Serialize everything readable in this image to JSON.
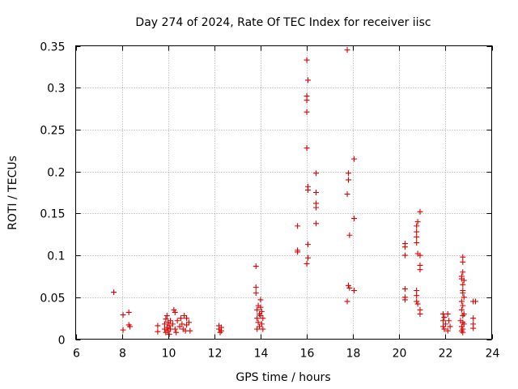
{
  "chart_data": {
    "type": "scatter",
    "title": "Day 274 of 2024, Rate Of TEC Index for receiver iisc",
    "xlabel": "GPS time / hours",
    "ylabel": "ROTI / TECUs",
    "xlim": [
      6,
      24
    ],
    "ylim": [
      0,
      0.35
    ],
    "grid": true,
    "marker": "+",
    "series_color": "#dd0000",
    "x_ticks": [
      6,
      8,
      10,
      12,
      14,
      16,
      18,
      20,
      22,
      24
    ],
    "x_tick_labels": [
      "6",
      "8",
      "10",
      "12",
      "14",
      "16",
      "18",
      "20",
      "22",
      "24"
    ],
    "y_ticks": [
      0,
      0.05,
      0.1,
      0.15,
      0.2,
      0.25,
      0.3,
      0.35
    ],
    "y_tick_labels": [
      "0",
      "0.05",
      "0.1",
      "0.15",
      "0.2",
      "0.25",
      "0.3",
      "0.35"
    ],
    "points": [
      [
        7.65,
        0.056
      ],
      [
        8.05,
        0.029
      ],
      [
        8.05,
        0.011
      ],
      [
        8.3,
        0.032
      ],
      [
        8.3,
        0.017
      ],
      [
        8.35,
        0.015
      ],
      [
        9.55,
        0.016
      ],
      [
        9.55,
        0.009
      ],
      [
        9.85,
        0.012
      ],
      [
        9.85,
        0.018
      ],
      [
        9.9,
        0.024
      ],
      [
        9.9,
        0.008
      ],
      [
        9.95,
        0.014
      ],
      [
        9.95,
        0.028
      ],
      [
        10.0,
        0.01
      ],
      [
        10.0,
        0.02
      ],
      [
        10.05,
        0.016
      ],
      [
        10.05,
        0.006
      ],
      [
        10.1,
        0.012
      ],
      [
        10.1,
        0.022
      ],
      [
        10.2,
        0.018
      ],
      [
        10.25,
        0.035
      ],
      [
        10.3,
        0.032
      ],
      [
        10.3,
        0.012
      ],
      [
        10.35,
        0.008
      ],
      [
        10.4,
        0.022
      ],
      [
        10.5,
        0.015
      ],
      [
        10.55,
        0.025
      ],
      [
        10.6,
        0.018
      ],
      [
        10.65,
        0.012
      ],
      [
        10.7,
        0.028
      ],
      [
        10.75,
        0.01
      ],
      [
        10.8,
        0.025
      ],
      [
        10.8,
        0.017
      ],
      [
        10.9,
        0.02
      ],
      [
        10.95,
        0.01
      ],
      [
        12.2,
        0.016
      ],
      [
        12.2,
        0.012
      ],
      [
        12.25,
        0.008
      ],
      [
        12.3,
        0.014
      ],
      [
        12.3,
        0.01
      ],
      [
        13.8,
        0.087
      ],
      [
        13.8,
        0.062
      ],
      [
        13.8,
        0.055
      ],
      [
        13.85,
        0.035
      ],
      [
        13.85,
        0.025
      ],
      [
        13.85,
        0.012
      ],
      [
        13.9,
        0.04
      ],
      [
        13.9,
        0.02
      ],
      [
        13.95,
        0.03
      ],
      [
        13.95,
        0.015
      ],
      [
        14.0,
        0.047
      ],
      [
        14.0,
        0.038
      ],
      [
        14.0,
        0.028
      ],
      [
        14.05,
        0.033
      ],
      [
        14.05,
        0.018
      ],
      [
        14.1,
        0.025
      ],
      [
        14.1,
        0.012
      ],
      [
        15.6,
        0.135
      ],
      [
        15.6,
        0.106
      ],
      [
        15.6,
        0.104
      ],
      [
        16.0,
        0.333
      ],
      [
        16.05,
        0.309
      ],
      [
        16.0,
        0.29
      ],
      [
        16.0,
        0.285
      ],
      [
        16.0,
        0.271
      ],
      [
        16.0,
        0.228
      ],
      [
        16.05,
        0.182
      ],
      [
        16.05,
        0.178
      ],
      [
        16.05,
        0.113
      ],
      [
        16.05,
        0.097
      ],
      [
        16.0,
        0.09
      ],
      [
        16.4,
        0.198
      ],
      [
        16.4,
        0.175
      ],
      [
        16.4,
        0.162
      ],
      [
        16.4,
        0.157
      ],
      [
        16.4,
        0.138
      ],
      [
        17.75,
        0.345
      ],
      [
        17.8,
        0.198
      ],
      [
        17.8,
        0.19
      ],
      [
        17.75,
        0.173
      ],
      [
        17.85,
        0.124
      ],
      [
        17.8,
        0.064
      ],
      [
        17.85,
        0.061
      ],
      [
        17.75,
        0.045
      ],
      [
        18.05,
        0.215
      ],
      [
        18.05,
        0.144
      ],
      [
        18.05,
        0.058
      ],
      [
        20.25,
        0.114
      ],
      [
        20.25,
        0.11
      ],
      [
        20.25,
        0.1
      ],
      [
        20.25,
        0.06
      ],
      [
        20.25,
        0.05
      ],
      [
        20.25,
        0.047
      ],
      [
        20.75,
        0.135
      ],
      [
        20.75,
        0.128
      ],
      [
        20.75,
        0.122
      ],
      [
        20.75,
        0.115
      ],
      [
        20.75,
        0.058
      ],
      [
        20.75,
        0.052
      ],
      [
        20.75,
        0.045
      ],
      [
        20.8,
        0.14
      ],
      [
        20.8,
        0.102
      ],
      [
        20.8,
        0.042
      ],
      [
        20.9,
        0.152
      ],
      [
        20.9,
        0.1
      ],
      [
        20.9,
        0.088
      ],
      [
        20.9,
        0.083
      ],
      [
        20.9,
        0.035
      ],
      [
        20.9,
        0.03
      ],
      [
        21.9,
        0.03
      ],
      [
        21.9,
        0.022
      ],
      [
        21.9,
        0.015
      ],
      [
        21.95,
        0.026
      ],
      [
        21.95,
        0.012
      ],
      [
        22.0,
        0.018
      ],
      [
        22.1,
        0.03
      ],
      [
        22.1,
        0.01
      ],
      [
        22.15,
        0.022
      ],
      [
        22.2,
        0.015
      ],
      [
        22.65,
        0.022
      ],
      [
        22.7,
        0.075
      ],
      [
        22.7,
        0.072
      ],
      [
        22.7,
        0.045
      ],
      [
        22.7,
        0.035
      ],
      [
        22.7,
        0.015
      ],
      [
        22.7,
        0.01
      ],
      [
        22.75,
        0.098
      ],
      [
        22.75,
        0.092
      ],
      [
        22.75,
        0.08
      ],
      [
        22.75,
        0.065
      ],
      [
        22.75,
        0.058
      ],
      [
        22.75,
        0.055
      ],
      [
        22.75,
        0.04
      ],
      [
        22.75,
        0.028
      ],
      [
        22.75,
        0.02
      ],
      [
        22.75,
        0.012
      ],
      [
        22.75,
        0.008
      ],
      [
        22.8,
        0.07
      ],
      [
        22.8,
        0.05
      ],
      [
        22.8,
        0.03
      ],
      [
        22.8,
        0.018
      ],
      [
        23.2,
        0.045
      ],
      [
        23.2,
        0.025
      ],
      [
        23.2,
        0.018
      ],
      [
        23.2,
        0.013
      ],
      [
        23.3,
        0.045
      ]
    ]
  }
}
